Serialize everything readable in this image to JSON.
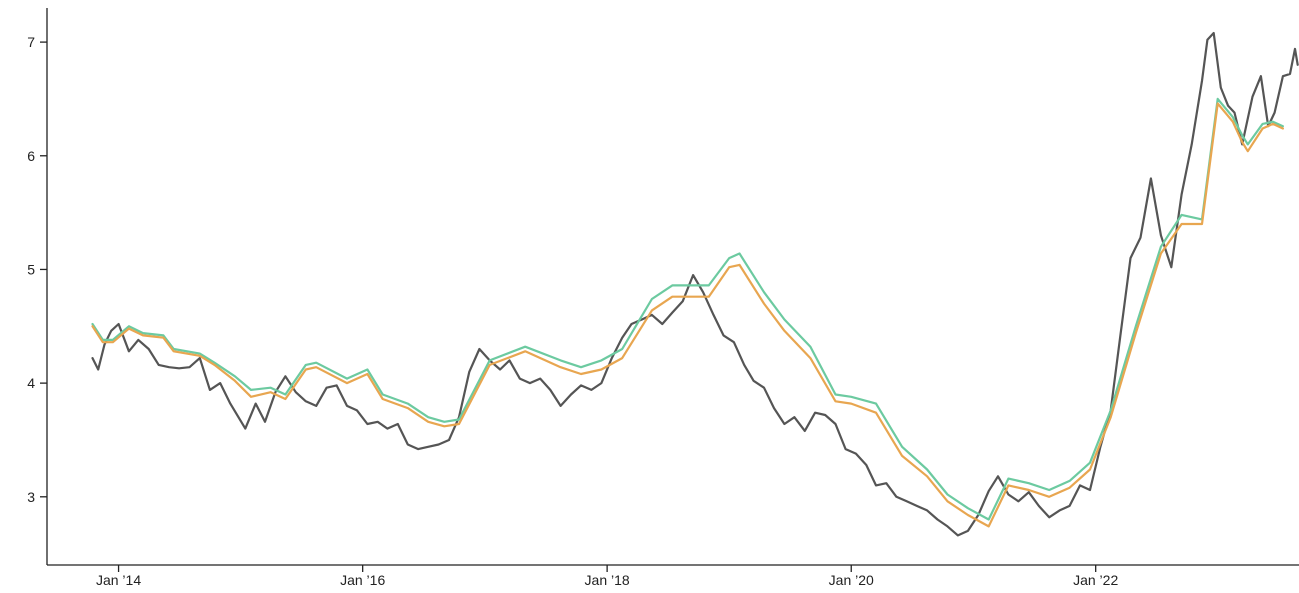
{
  "chart_data": {
    "type": "line",
    "title": "",
    "xlabel": "",
    "ylabel": "",
    "xlim": [
      "2013-06-01",
      "2023-09-01"
    ],
    "ylim": [
      2.4,
      7.3
    ],
    "grid": false,
    "legend": "none",
    "x_ticks": [
      {
        "date": "2014-01-01",
        "label": "Jan ’14"
      },
      {
        "date": "2016-01-01",
        "label": "Jan ’16"
      },
      {
        "date": "2018-01-01",
        "label": "Jan ’18"
      },
      {
        "date": "2020-01-01",
        "label": "Jan ’20"
      },
      {
        "date": "2022-01-01",
        "label": "Jan ’22"
      }
    ],
    "y_ticks": [
      {
        "value": 3,
        "label": "3"
      },
      {
        "value": 4,
        "label": "4"
      },
      {
        "value": 5,
        "label": "5"
      },
      {
        "value": 6,
        "label": "6"
      },
      {
        "value": 7,
        "label": "7"
      }
    ],
    "series": [
      {
        "color": "#555555",
        "points": [
          [
            "2013-10-15",
            4.22
          ],
          [
            "2013-11-01",
            4.12
          ],
          [
            "2013-11-20",
            4.34
          ],
          [
            "2013-12-10",
            4.46
          ],
          [
            "2014-01-01",
            4.52
          ],
          [
            "2014-02-01",
            4.28
          ],
          [
            "2014-03-01",
            4.38
          ],
          [
            "2014-04-01",
            4.3
          ],
          [
            "2014-05-01",
            4.16
          ],
          [
            "2014-06-01",
            4.14
          ],
          [
            "2014-07-01",
            4.13
          ],
          [
            "2014-08-01",
            4.14
          ],
          [
            "2014-09-01",
            4.22
          ],
          [
            "2014-10-01",
            3.94
          ],
          [
            "2014-11-01",
            4.0
          ],
          [
            "2014-12-01",
            3.82
          ],
          [
            "2015-01-15",
            3.6
          ],
          [
            "2015-02-15",
            3.82
          ],
          [
            "2015-03-15",
            3.66
          ],
          [
            "2015-04-15",
            3.92
          ],
          [
            "2015-05-15",
            4.06
          ],
          [
            "2015-06-15",
            3.92
          ],
          [
            "2015-07-15",
            3.84
          ],
          [
            "2015-08-15",
            3.8
          ],
          [
            "2015-09-15",
            3.96
          ],
          [
            "2015-10-15",
            3.98
          ],
          [
            "2015-11-15",
            3.8
          ],
          [
            "2015-12-15",
            3.76
          ],
          [
            "2016-01-15",
            3.64
          ],
          [
            "2016-02-15",
            3.66
          ],
          [
            "2016-03-15",
            3.6
          ],
          [
            "2016-04-15",
            3.64
          ],
          [
            "2016-05-15",
            3.46
          ],
          [
            "2016-06-15",
            3.42
          ],
          [
            "2016-07-15",
            3.44
          ],
          [
            "2016-08-15",
            3.46
          ],
          [
            "2016-09-15",
            3.5
          ],
          [
            "2016-10-15",
            3.7
          ],
          [
            "2016-11-15",
            4.1
          ],
          [
            "2016-12-15",
            4.3
          ],
          [
            "2017-01-15",
            4.2
          ],
          [
            "2017-02-15",
            4.12
          ],
          [
            "2017-03-15",
            4.2
          ],
          [
            "2017-04-15",
            4.04
          ],
          [
            "2017-05-15",
            4.0
          ],
          [
            "2017-06-15",
            4.04
          ],
          [
            "2017-07-15",
            3.94
          ],
          [
            "2017-08-15",
            3.8
          ],
          [
            "2017-09-15",
            3.9
          ],
          [
            "2017-10-15",
            3.98
          ],
          [
            "2017-11-15",
            3.94
          ],
          [
            "2017-12-15",
            4.0
          ],
          [
            "2018-01-15",
            4.22
          ],
          [
            "2018-02-15",
            4.4
          ],
          [
            "2018-03-15",
            4.52
          ],
          [
            "2018-04-15",
            4.56
          ],
          [
            "2018-05-15",
            4.6
          ],
          [
            "2018-06-15",
            4.52
          ],
          [
            "2018-07-15",
            4.62
          ],
          [
            "2018-08-15",
            4.72
          ],
          [
            "2018-09-15",
            4.95
          ],
          [
            "2018-10-15",
            4.8
          ],
          [
            "2018-11-15",
            4.6
          ],
          [
            "2018-12-15",
            4.42
          ],
          [
            "2019-01-15",
            4.36
          ],
          [
            "2019-02-15",
            4.16
          ],
          [
            "2019-03-15",
            4.02
          ],
          [
            "2019-04-15",
            3.96
          ],
          [
            "2019-05-15",
            3.78
          ],
          [
            "2019-06-15",
            3.64
          ],
          [
            "2019-07-15",
            3.7
          ],
          [
            "2019-08-15",
            3.58
          ],
          [
            "2019-09-15",
            3.74
          ],
          [
            "2019-10-15",
            3.72
          ],
          [
            "2019-11-15",
            3.64
          ],
          [
            "2019-12-15",
            3.42
          ],
          [
            "2020-01-15",
            3.38
          ],
          [
            "2020-02-15",
            3.28
          ],
          [
            "2020-03-15",
            3.1
          ],
          [
            "2020-04-15",
            3.12
          ],
          [
            "2020-05-15",
            3.0
          ],
          [
            "2020-06-15",
            2.96
          ],
          [
            "2020-07-15",
            2.92
          ],
          [
            "2020-08-15",
            2.88
          ],
          [
            "2020-09-15",
            2.8
          ],
          [
            "2020-10-15",
            2.74
          ],
          [
            "2020-11-15",
            2.66
          ],
          [
            "2020-12-15",
            2.7
          ],
          [
            "2021-01-15",
            2.84
          ],
          [
            "2021-02-15",
            3.05
          ],
          [
            "2021-03-15",
            3.18
          ],
          [
            "2021-04-15",
            3.02
          ],
          [
            "2021-05-15",
            2.96
          ],
          [
            "2021-06-15",
            3.04
          ],
          [
            "2021-07-15",
            2.92
          ],
          [
            "2021-08-15",
            2.82
          ],
          [
            "2021-09-15",
            2.88
          ],
          [
            "2021-10-15",
            2.92
          ],
          [
            "2021-11-15",
            3.1
          ],
          [
            "2021-12-15",
            3.06
          ],
          [
            "2022-01-15",
            3.44
          ],
          [
            "2022-02-15",
            3.76
          ],
          [
            "2022-03-15",
            4.4
          ],
          [
            "2022-04-15",
            5.1
          ],
          [
            "2022-05-15",
            5.28
          ],
          [
            "2022-06-15",
            5.8
          ],
          [
            "2022-07-15",
            5.3
          ],
          [
            "2022-08-15",
            5.02
          ],
          [
            "2022-09-15",
            5.66
          ],
          [
            "2022-10-15",
            6.1
          ],
          [
            "2022-11-15",
            6.66
          ],
          [
            "2022-12-01",
            7.02
          ],
          [
            "2022-12-20",
            7.08
          ],
          [
            "2023-01-10",
            6.6
          ],
          [
            "2023-02-01",
            6.44
          ],
          [
            "2023-02-20",
            6.38
          ],
          [
            "2023-03-15",
            6.1
          ],
          [
            "2023-04-15",
            6.52
          ],
          [
            "2023-05-10",
            6.7
          ],
          [
            "2023-06-01",
            6.26
          ],
          [
            "2023-06-20",
            6.38
          ],
          [
            "2023-07-15",
            6.7
          ],
          [
            "2023-08-05",
            6.72
          ],
          [
            "2023-08-20",
            6.94
          ],
          [
            "2023-08-28",
            6.8
          ]
        ]
      },
      {
        "color": "#6ccaa0",
        "points": [
          [
            "2013-10-15",
            4.52
          ],
          [
            "2013-11-15",
            4.38
          ],
          [
            "2013-12-15",
            4.38
          ],
          [
            "2014-02-01",
            4.5
          ],
          [
            "2014-03-15",
            4.44
          ],
          [
            "2014-05-15",
            4.42
          ],
          [
            "2014-06-15",
            4.3
          ],
          [
            "2014-09-01",
            4.26
          ],
          [
            "2014-10-15",
            4.18
          ],
          [
            "2014-12-15",
            4.06
          ],
          [
            "2015-02-01",
            3.94
          ],
          [
            "2015-04-01",
            3.96
          ],
          [
            "2015-05-15",
            3.9
          ],
          [
            "2015-07-15",
            4.16
          ],
          [
            "2015-08-15",
            4.18
          ],
          [
            "2015-11-15",
            4.04
          ],
          [
            "2016-01-15",
            4.12
          ],
          [
            "2016-03-01",
            3.9
          ],
          [
            "2016-05-15",
            3.82
          ],
          [
            "2016-07-15",
            3.7
          ],
          [
            "2016-09-01",
            3.66
          ],
          [
            "2016-10-15",
            3.68
          ],
          [
            "2017-01-15",
            4.2
          ],
          [
            "2017-05-01",
            4.32
          ],
          [
            "2017-08-15",
            4.2
          ],
          [
            "2017-10-15",
            4.14
          ],
          [
            "2017-12-15",
            4.2
          ],
          [
            "2018-02-15",
            4.3
          ],
          [
            "2018-05-15",
            4.74
          ],
          [
            "2018-07-15",
            4.86
          ],
          [
            "2018-11-01",
            4.86
          ],
          [
            "2019-01-01",
            5.1
          ],
          [
            "2019-02-01",
            5.14
          ],
          [
            "2019-04-15",
            4.8
          ],
          [
            "2019-06-15",
            4.56
          ],
          [
            "2019-09-01",
            4.32
          ],
          [
            "2019-11-15",
            3.9
          ],
          [
            "2020-01-01",
            3.88
          ],
          [
            "2020-03-15",
            3.82
          ],
          [
            "2020-06-01",
            3.44
          ],
          [
            "2020-08-15",
            3.24
          ],
          [
            "2020-10-15",
            3.02
          ],
          [
            "2020-12-15",
            2.9
          ],
          [
            "2021-02-15",
            2.8
          ],
          [
            "2021-04-15",
            3.16
          ],
          [
            "2021-06-15",
            3.12
          ],
          [
            "2021-08-15",
            3.06
          ],
          [
            "2021-10-15",
            3.14
          ],
          [
            "2021-12-15",
            3.3
          ],
          [
            "2022-02-15",
            3.76
          ],
          [
            "2022-05-01",
            4.5
          ],
          [
            "2022-07-15",
            5.2
          ],
          [
            "2022-09-15",
            5.48
          ],
          [
            "2022-11-15",
            5.44
          ],
          [
            "2023-01-01",
            6.5
          ],
          [
            "2023-02-15",
            6.34
          ],
          [
            "2023-03-15",
            6.18
          ],
          [
            "2023-04-01",
            6.1
          ],
          [
            "2023-05-15",
            6.28
          ],
          [
            "2023-06-15",
            6.3
          ],
          [
            "2023-07-15",
            6.26
          ]
        ]
      },
      {
        "color": "#e8a650",
        "points": [
          [
            "2013-10-15",
            4.5
          ],
          [
            "2013-11-15",
            4.36
          ],
          [
            "2013-12-15",
            4.36
          ],
          [
            "2014-02-01",
            4.48
          ],
          [
            "2014-03-15",
            4.42
          ],
          [
            "2014-05-15",
            4.4
          ],
          [
            "2014-06-15",
            4.28
          ],
          [
            "2014-09-01",
            4.24
          ],
          [
            "2014-10-15",
            4.16
          ],
          [
            "2014-12-15",
            4.02
          ],
          [
            "2015-02-01",
            3.88
          ],
          [
            "2015-04-01",
            3.92
          ],
          [
            "2015-05-15",
            3.86
          ],
          [
            "2015-07-15",
            4.12
          ],
          [
            "2015-08-15",
            4.14
          ],
          [
            "2015-11-15",
            4.0
          ],
          [
            "2016-01-15",
            4.08
          ],
          [
            "2016-03-01",
            3.86
          ],
          [
            "2016-05-15",
            3.78
          ],
          [
            "2016-07-15",
            3.66
          ],
          [
            "2016-09-01",
            3.62
          ],
          [
            "2016-10-15",
            3.64
          ],
          [
            "2017-01-15",
            4.16
          ],
          [
            "2017-05-01",
            4.28
          ],
          [
            "2017-08-15",
            4.14
          ],
          [
            "2017-10-15",
            4.08
          ],
          [
            "2017-12-15",
            4.12
          ],
          [
            "2018-02-15",
            4.22
          ],
          [
            "2018-05-15",
            4.64
          ],
          [
            "2018-07-15",
            4.76
          ],
          [
            "2018-11-01",
            4.76
          ],
          [
            "2019-01-01",
            5.02
          ],
          [
            "2019-02-01",
            5.04
          ],
          [
            "2019-04-15",
            4.7
          ],
          [
            "2019-06-15",
            4.46
          ],
          [
            "2019-09-01",
            4.22
          ],
          [
            "2019-11-15",
            3.84
          ],
          [
            "2020-01-01",
            3.82
          ],
          [
            "2020-03-15",
            3.74
          ],
          [
            "2020-06-01",
            3.36
          ],
          [
            "2020-08-15",
            3.18
          ],
          [
            "2020-10-15",
            2.96
          ],
          [
            "2020-12-15",
            2.84
          ],
          [
            "2021-02-15",
            2.74
          ],
          [
            "2021-04-15",
            3.1
          ],
          [
            "2021-06-15",
            3.06
          ],
          [
            "2021-08-15",
            3.0
          ],
          [
            "2021-10-15",
            3.08
          ],
          [
            "2021-12-15",
            3.24
          ],
          [
            "2022-02-15",
            3.7
          ],
          [
            "2022-05-01",
            4.44
          ],
          [
            "2022-07-15",
            5.14
          ],
          [
            "2022-09-15",
            5.4
          ],
          [
            "2022-11-15",
            5.4
          ],
          [
            "2023-01-01",
            6.46
          ],
          [
            "2023-02-15",
            6.3
          ],
          [
            "2023-03-15",
            6.12
          ],
          [
            "2023-04-01",
            6.04
          ],
          [
            "2023-05-15",
            6.24
          ],
          [
            "2023-06-15",
            6.28
          ],
          [
            "2023-07-15",
            6.24
          ]
        ]
      }
    ]
  }
}
